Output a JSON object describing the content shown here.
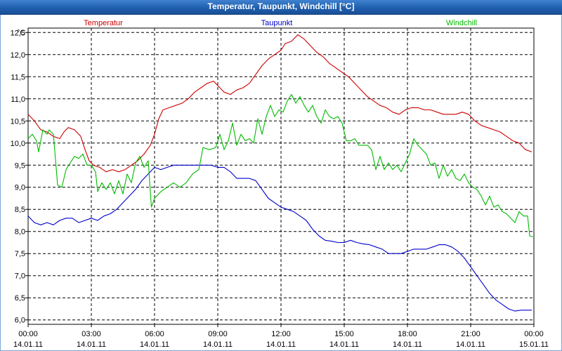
{
  "window": {
    "title": "Temperatur, Taupunkt, Windchill [°C]"
  },
  "chart_data": {
    "type": "line",
    "title": "Temperatur, Taupunkt, Windchill [°C]",
    "ylabel": "°C",
    "xlabel": "",
    "ylim": [
      5.9,
      12.6
    ],
    "xlim": [
      0,
      24
    ],
    "grid": true,
    "legend_position": "top",
    "yticks": [
      "12,5",
      "12,0",
      "11,5",
      "11,0",
      "10,5",
      "10,0",
      "9,5",
      "9,0",
      "8,5",
      "8,0",
      "7,5",
      "7,0",
      "6,5",
      "6,0"
    ],
    "ytick_values": [
      12.5,
      12.0,
      11.5,
      11.0,
      10.5,
      10.0,
      9.5,
      9.0,
      8.5,
      8.0,
      7.5,
      7.0,
      6.5,
      6.0
    ],
    "xtick_values": [
      0,
      3,
      6,
      9,
      12,
      15,
      18,
      21,
      24
    ],
    "xticks": [
      {
        "time": "00:00",
        "date": "14.01.11"
      },
      {
        "time": "03:00",
        "date": "14.01.11"
      },
      {
        "time": "06:00",
        "date": "14.01.11"
      },
      {
        "time": "09:00",
        "date": "14.01.11"
      },
      {
        "time": "12:00",
        "date": "14.01.11"
      },
      {
        "time": "15:00",
        "date": "14.01.11"
      },
      {
        "time": "18:00",
        "date": "14.01.11"
      },
      {
        "time": "21:00",
        "date": "14.01.11"
      },
      {
        "time": "00:00",
        "date": "15.01.11"
      }
    ],
    "series": [
      {
        "name": "Temperatur",
        "color": "#cc0000",
        "points": [
          [
            0,
            10.65
          ],
          [
            0.3,
            10.5
          ],
          [
            0.6,
            10.3
          ],
          [
            0.9,
            10.25
          ],
          [
            1.2,
            10.15
          ],
          [
            1.5,
            10.1
          ],
          [
            1.7,
            10.25
          ],
          [
            1.9,
            10.35
          ],
          [
            2.2,
            10.3
          ],
          [
            2.5,
            10.15
          ],
          [
            2.7,
            9.85
          ],
          [
            2.9,
            9.6
          ],
          [
            3.1,
            9.5
          ],
          [
            3.4,
            9.45
          ],
          [
            3.7,
            9.35
          ],
          [
            4.0,
            9.4
          ],
          [
            4.3,
            9.35
          ],
          [
            4.6,
            9.4
          ],
          [
            4.9,
            9.5
          ],
          [
            5.2,
            9.6
          ],
          [
            5.5,
            9.75
          ],
          [
            5.8,
            9.95
          ],
          [
            6.0,
            10.2
          ],
          [
            6.2,
            10.55
          ],
          [
            6.4,
            10.75
          ],
          [
            6.7,
            10.8
          ],
          [
            7.0,
            10.85
          ],
          [
            7.3,
            10.9
          ],
          [
            7.6,
            11.0
          ],
          [
            7.9,
            11.15
          ],
          [
            8.2,
            11.25
          ],
          [
            8.5,
            11.35
          ],
          [
            8.8,
            11.4
          ],
          [
            9.0,
            11.3
          ],
          [
            9.3,
            11.15
          ],
          [
            9.6,
            11.1
          ],
          [
            9.9,
            11.2
          ],
          [
            10.2,
            11.25
          ],
          [
            10.5,
            11.35
          ],
          [
            10.8,
            11.55
          ],
          [
            11.1,
            11.75
          ],
          [
            11.4,
            11.9
          ],
          [
            11.7,
            12.0
          ],
          [
            12.0,
            12.1
          ],
          [
            12.2,
            12.25
          ],
          [
            12.5,
            12.3
          ],
          [
            12.8,
            12.45
          ],
          [
            13.1,
            12.35
          ],
          [
            13.4,
            12.2
          ],
          [
            13.7,
            12.05
          ],
          [
            14.0,
            11.95
          ],
          [
            14.3,
            11.8
          ],
          [
            14.6,
            11.7
          ],
          [
            14.9,
            11.6
          ],
          [
            15.2,
            11.5
          ],
          [
            15.5,
            11.35
          ],
          [
            15.8,
            11.2
          ],
          [
            16.1,
            11.05
          ],
          [
            16.4,
            10.95
          ],
          [
            16.7,
            10.85
          ],
          [
            17.0,
            10.8
          ],
          [
            17.3,
            10.7
          ],
          [
            17.6,
            10.65
          ],
          [
            17.9,
            10.75
          ],
          [
            18.2,
            10.8
          ],
          [
            18.5,
            10.8
          ],
          [
            18.8,
            10.75
          ],
          [
            19.1,
            10.75
          ],
          [
            19.4,
            10.7
          ],
          [
            19.7,
            10.65
          ],
          [
            20.0,
            10.65
          ],
          [
            20.3,
            10.65
          ],
          [
            20.6,
            10.7
          ],
          [
            20.9,
            10.65
          ],
          [
            21.2,
            10.5
          ],
          [
            21.5,
            10.4
          ],
          [
            21.8,
            10.35
          ],
          [
            22.1,
            10.3
          ],
          [
            22.4,
            10.25
          ],
          [
            22.7,
            10.15
          ],
          [
            23.0,
            10.05
          ],
          [
            23.3,
            10.0
          ],
          [
            23.6,
            9.85
          ],
          [
            23.9,
            9.8
          ]
        ]
      },
      {
        "name": "Taupunkt",
        "color": "#0000cc",
        "points": [
          [
            0,
            8.35
          ],
          [
            0.3,
            8.2
          ],
          [
            0.6,
            8.15
          ],
          [
            0.9,
            8.2
          ],
          [
            1.2,
            8.15
          ],
          [
            1.5,
            8.25
          ],
          [
            1.8,
            8.3
          ],
          [
            2.1,
            8.3
          ],
          [
            2.4,
            8.2
          ],
          [
            2.7,
            8.25
          ],
          [
            3.0,
            8.3
          ],
          [
            3.3,
            8.25
          ],
          [
            3.6,
            8.35
          ],
          [
            3.9,
            8.4
          ],
          [
            4.2,
            8.5
          ],
          [
            4.5,
            8.65
          ],
          [
            4.8,
            8.8
          ],
          [
            5.1,
            8.95
          ],
          [
            5.4,
            9.15
          ],
          [
            5.7,
            9.3
          ],
          [
            6.0,
            9.45
          ],
          [
            6.3,
            9.4
          ],
          [
            6.6,
            9.45
          ],
          [
            6.9,
            9.5
          ],
          [
            7.2,
            9.5
          ],
          [
            7.5,
            9.5
          ],
          [
            7.8,
            9.5
          ],
          [
            8.1,
            9.5
          ],
          [
            8.4,
            9.5
          ],
          [
            8.7,
            9.5
          ],
          [
            9.0,
            9.45
          ],
          [
            9.3,
            9.45
          ],
          [
            9.6,
            9.35
          ],
          [
            9.9,
            9.2
          ],
          [
            10.2,
            9.2
          ],
          [
            10.5,
            9.2
          ],
          [
            10.8,
            9.15
          ],
          [
            11.1,
            8.95
          ],
          [
            11.4,
            8.75
          ],
          [
            11.7,
            8.65
          ],
          [
            12.0,
            8.55
          ],
          [
            12.3,
            8.5
          ],
          [
            12.6,
            8.45
          ],
          [
            12.9,
            8.35
          ],
          [
            13.2,
            8.25
          ],
          [
            13.5,
            8.05
          ],
          [
            13.8,
            7.9
          ],
          [
            14.1,
            7.8
          ],
          [
            14.4,
            7.78
          ],
          [
            14.7,
            7.75
          ],
          [
            15.0,
            7.75
          ],
          [
            15.3,
            7.8
          ],
          [
            15.6,
            7.75
          ],
          [
            15.9,
            7.72
          ],
          [
            16.2,
            7.7
          ],
          [
            16.5,
            7.65
          ],
          [
            16.8,
            7.6
          ],
          [
            17.1,
            7.5
          ],
          [
            17.4,
            7.5
          ],
          [
            17.7,
            7.5
          ],
          [
            18.0,
            7.55
          ],
          [
            18.3,
            7.6
          ],
          [
            18.6,
            7.6
          ],
          [
            18.9,
            7.6
          ],
          [
            19.2,
            7.65
          ],
          [
            19.5,
            7.7
          ],
          [
            19.8,
            7.7
          ],
          [
            20.1,
            7.65
          ],
          [
            20.4,
            7.55
          ],
          [
            20.7,
            7.4
          ],
          [
            21.0,
            7.2
          ],
          [
            21.3,
            7.0
          ],
          [
            21.6,
            6.8
          ],
          [
            21.9,
            6.6
          ],
          [
            22.2,
            6.45
          ],
          [
            22.5,
            6.35
          ],
          [
            22.8,
            6.25
          ],
          [
            23.1,
            6.2
          ],
          [
            23.4,
            6.22
          ],
          [
            23.9,
            6.22
          ]
        ]
      },
      {
        "name": "Windchill",
        "color": "#00bb00",
        "points": [
          [
            0,
            10.1
          ],
          [
            0.2,
            10.2
          ],
          [
            0.4,
            10.05
          ],
          [
            0.5,
            9.8
          ],
          [
            0.7,
            10.3
          ],
          [
            0.9,
            10.2
          ],
          [
            1.0,
            10.3
          ],
          [
            1.2,
            10.2
          ],
          [
            1.4,
            9.05
          ],
          [
            1.6,
            9.0
          ],
          [
            1.8,
            9.4
          ],
          [
            2.0,
            9.55
          ],
          [
            2.2,
            9.7
          ],
          [
            2.4,
            9.65
          ],
          [
            2.6,
            9.75
          ],
          [
            2.8,
            9.5
          ],
          [
            3.0,
            9.5
          ],
          [
            3.2,
            9.35
          ],
          [
            3.3,
            8.9
          ],
          [
            3.5,
            9.1
          ],
          [
            3.7,
            8.95
          ],
          [
            3.9,
            9.1
          ],
          [
            4.1,
            8.85
          ],
          [
            4.3,
            9.15
          ],
          [
            4.5,
            8.85
          ],
          [
            4.7,
            9.3
          ],
          [
            4.9,
            9.1
          ],
          [
            5.1,
            9.55
          ],
          [
            5.3,
            9.7
          ],
          [
            5.5,
            9.45
          ],
          [
            5.7,
            9.6
          ],
          [
            5.85,
            8.55
          ],
          [
            6.0,
            8.75
          ],
          [
            6.3,
            8.9
          ],
          [
            6.6,
            9.0
          ],
          [
            6.9,
            9.1
          ],
          [
            7.2,
            9.0
          ],
          [
            7.5,
            9.1
          ],
          [
            7.8,
            9.3
          ],
          [
            8.1,
            9.4
          ],
          [
            8.3,
            9.9
          ],
          [
            8.6,
            9.85
          ],
          [
            8.9,
            9.9
          ],
          [
            9.1,
            10.2
          ],
          [
            9.3,
            9.85
          ],
          [
            9.5,
            10.05
          ],
          [
            9.7,
            10.45
          ],
          [
            9.9,
            9.95
          ],
          [
            10.1,
            10.2
          ],
          [
            10.3,
            10.05
          ],
          [
            10.5,
            10.1
          ],
          [
            10.7,
            10.0
          ],
          [
            10.9,
            10.55
          ],
          [
            11.1,
            10.2
          ],
          [
            11.3,
            10.6
          ],
          [
            11.5,
            10.85
          ],
          [
            11.7,
            10.6
          ],
          [
            11.9,
            10.75
          ],
          [
            12.1,
            10.7
          ],
          [
            12.3,
            10.95
          ],
          [
            12.5,
            11.1
          ],
          [
            12.7,
            10.9
          ],
          [
            12.9,
            11.05
          ],
          [
            13.1,
            10.85
          ],
          [
            13.3,
            10.7
          ],
          [
            13.5,
            10.85
          ],
          [
            13.7,
            10.6
          ],
          [
            13.9,
            10.45
          ],
          [
            14.1,
            10.75
          ],
          [
            14.3,
            10.6
          ],
          [
            14.5,
            10.55
          ],
          [
            14.7,
            10.6
          ],
          [
            14.9,
            10.45
          ],
          [
            15.1,
            10.05
          ],
          [
            15.3,
            10.05
          ],
          [
            15.5,
            10.1
          ],
          [
            15.7,
            9.95
          ],
          [
            15.9,
            9.95
          ],
          [
            16.1,
            9.95
          ],
          [
            16.3,
            9.85
          ],
          [
            16.5,
            9.4
          ],
          [
            16.7,
            9.7
          ],
          [
            16.9,
            9.4
          ],
          [
            17.1,
            9.55
          ],
          [
            17.3,
            9.4
          ],
          [
            17.5,
            9.5
          ],
          [
            17.7,
            9.35
          ],
          [
            17.9,
            9.55
          ],
          [
            18.1,
            9.75
          ],
          [
            18.3,
            10.1
          ],
          [
            18.5,
            9.95
          ],
          [
            18.7,
            9.85
          ],
          [
            18.9,
            9.75
          ],
          [
            19.1,
            9.5
          ],
          [
            19.3,
            9.55
          ],
          [
            19.5,
            9.2
          ],
          [
            19.7,
            9.5
          ],
          [
            19.9,
            9.25
          ],
          [
            20.1,
            9.4
          ],
          [
            20.3,
            9.2
          ],
          [
            20.5,
            9.15
          ],
          [
            20.7,
            9.3
          ],
          [
            20.9,
            9.1
          ],
          [
            21.1,
            9.0
          ],
          [
            21.3,
            8.95
          ],
          [
            21.5,
            8.8
          ],
          [
            21.7,
            8.6
          ],
          [
            21.9,
            8.8
          ],
          [
            22.1,
            8.55
          ],
          [
            22.3,
            8.6
          ],
          [
            22.5,
            8.45
          ],
          [
            22.7,
            8.4
          ],
          [
            22.9,
            8.3
          ],
          [
            23.1,
            8.2
          ],
          [
            23.3,
            8.45
          ],
          [
            23.5,
            8.35
          ],
          [
            23.7,
            8.35
          ],
          [
            23.8,
            7.9
          ],
          [
            23.95,
            7.88
          ]
        ]
      }
    ]
  }
}
